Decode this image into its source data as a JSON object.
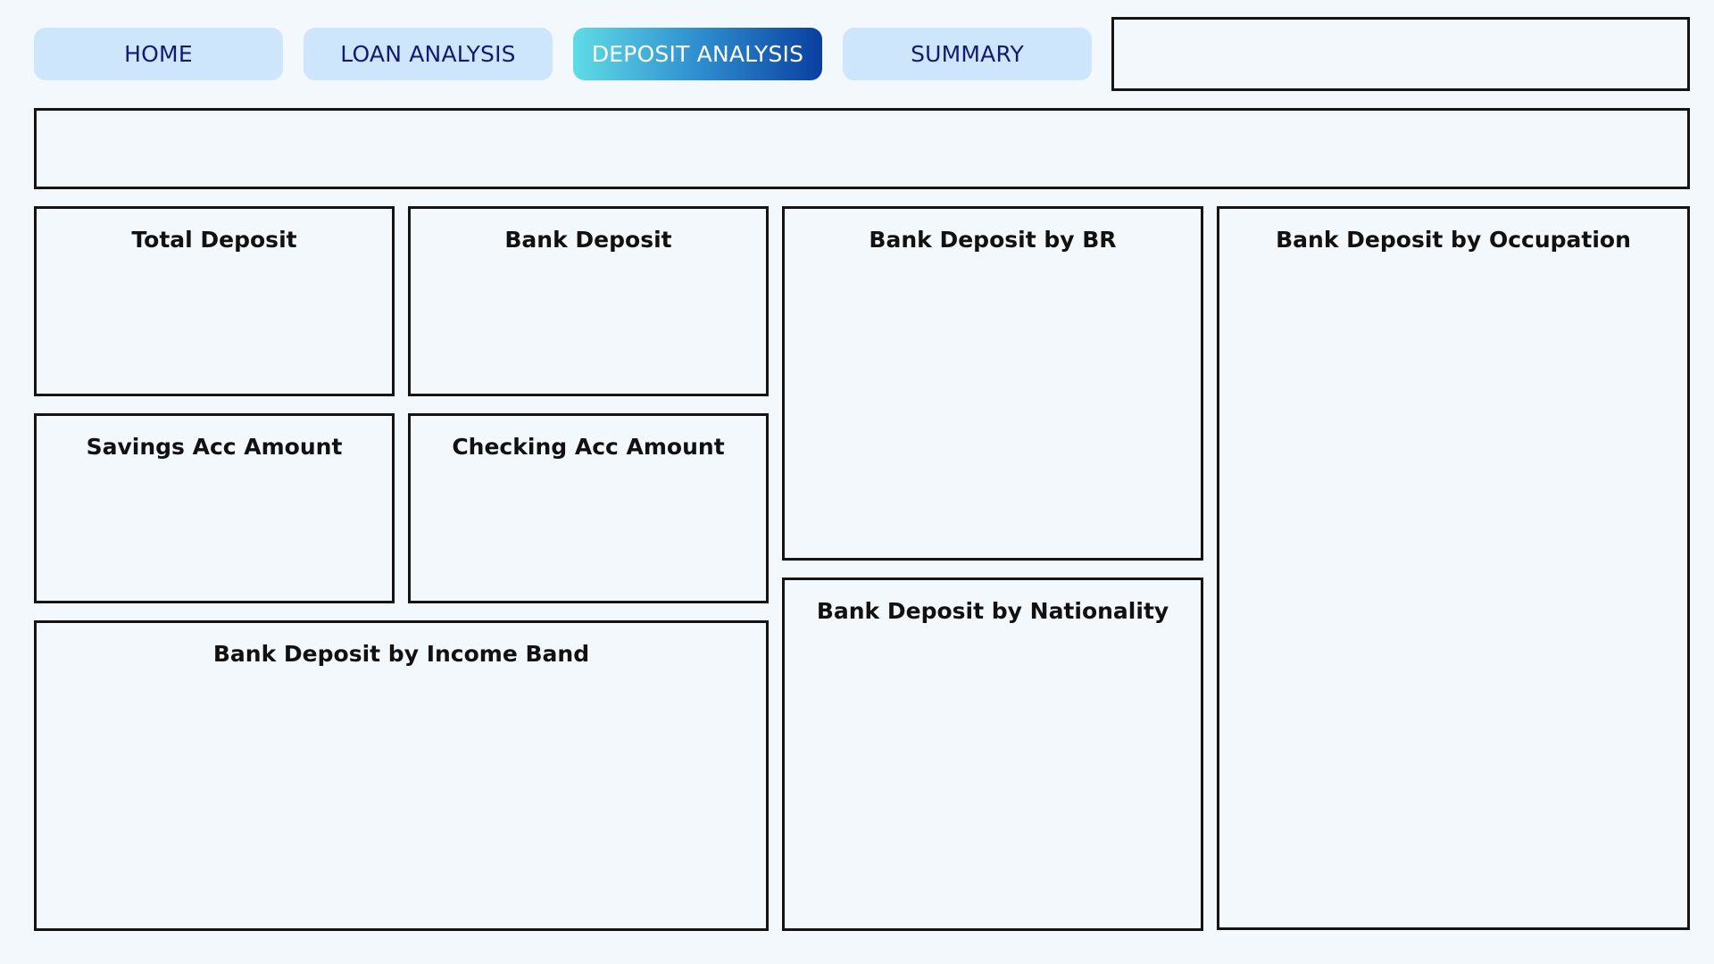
{
  "nav": {
    "tabs": [
      {
        "label": "HOME",
        "active": false
      },
      {
        "label": "LOAN ANALYSIS",
        "active": false
      },
      {
        "label": "DEPOSIT ANALYSIS",
        "active": true
      },
      {
        "label": "SUMMARY",
        "active": false
      }
    ]
  },
  "panels": {
    "total_deposit": "Total Deposit",
    "bank_deposit": "Bank Deposit",
    "savings_acc_amount": "Savings Acc Amount",
    "checking_acc_amount": "Checking Acc Amount",
    "income_band": "Bank Deposit by Income Band",
    "by_br": "Bank Deposit by BR",
    "by_nationality": "Bank Deposit by Nationality",
    "by_occupation": "Bank Deposit by Occupation"
  },
  "colors": {
    "background": "#f3f8fd",
    "tab_bg": "#cde6fb",
    "tab_text": "#141a72",
    "active_gradient_start": "#5fdce6",
    "active_gradient_end": "#0a3fa0",
    "border": "#141414"
  }
}
